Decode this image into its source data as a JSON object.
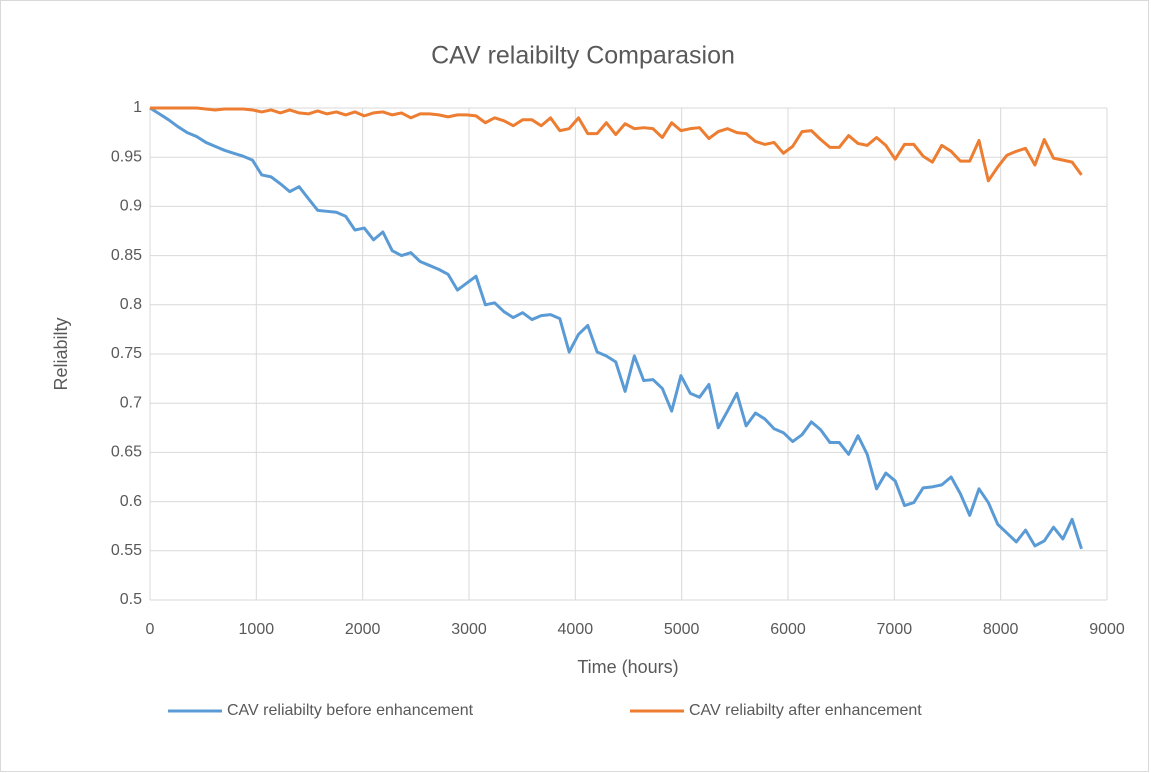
{
  "chart_data": {
    "type": "line",
    "title": "CAV relaibilty Comparasion",
    "x_label": "Time (hours)",
    "y_label": "Reliabilty",
    "x": [
      0,
      88,
      175,
      263,
      350,
      438,
      526,
      613,
      701,
      788,
      876,
      964,
      1051,
      1139,
      1226,
      1314,
      1402,
      1489,
      1577,
      1664,
      1752,
      1840,
      1927,
      2015,
      2102,
      2190,
      2278,
      2365,
      2453,
      2540,
      2628,
      2716,
      2803,
      2891,
      2978,
      3066,
      3154,
      3241,
      3329,
      3416,
      3504,
      3592,
      3679,
      3767,
      3854,
      3942,
      4030,
      4117,
      4205,
      4292,
      4380,
      4468,
      4555,
      4643,
      4730,
      4818,
      4906,
      4993,
      5081,
      5168,
      5256,
      5344,
      5431,
      5519,
      5606,
      5694,
      5782,
      5869,
      5957,
      6044,
      6132,
      6220,
      6307,
      6395,
      6482,
      6570,
      6658,
      6745,
      6833,
      6920,
      7008,
      7096,
      7183,
      7271,
      7358,
      7446,
      7534,
      7621,
      7709,
      7796,
      7884,
      7972,
      8059,
      8147,
      8234,
      8322,
      8410,
      8497,
      8585,
      8672,
      8760
    ],
    "series": [
      {
        "name": "CAV reliabilty before enhancement",
        "color": "#5b9bd5",
        "values": [
          1,
          0.994,
          0.988,
          0.981,
          0.975,
          0.971,
          0.965,
          0.961,
          0.957,
          0.954,
          0.951,
          0.947,
          0.932,
          0.93,
          0.923,
          0.915,
          0.92,
          0.908,
          0.896,
          0.895,
          0.894,
          0.89,
          0.876,
          0.878,
          0.866,
          0.874,
          0.855,
          0.85,
          0.853,
          0.844,
          0.84,
          0.836,
          0.831,
          0.815,
          0.822,
          0.829,
          0.8,
          0.802,
          0.793,
          0.787,
          0.792,
          0.785,
          0.789,
          0.79,
          0.786,
          0.752,
          0.77,
          0.779,
          0.752,
          0.748,
          0.742,
          0.712,
          0.748,
          0.723,
          0.724,
          0.715,
          0.692,
          0.728,
          0.71,
          0.706,
          0.719,
          0.675,
          0.692,
          0.71,
          0.677,
          0.69,
          0.684,
          0.674,
          0.67,
          0.661,
          0.668,
          0.681,
          0.673,
          0.66,
          0.66,
          0.648,
          0.667,
          0.648,
          0.613,
          0.629,
          0.621,
          0.596,
          0.599,
          0.614,
          0.615,
          0.617,
          0.625,
          0.608,
          0.586,
          0.613,
          0.599,
          0.577,
          0.568,
          0.559,
          0.571,
          0.555,
          0.56,
          0.574,
          0.562,
          0.582,
          0.552
        ]
      },
      {
        "name": "CAV reliabilty after enhancement",
        "color": "#ed7d31",
        "values": [
          1,
          1,
          1,
          1,
          1,
          1,
          0.999,
          0.998,
          0.999,
          0.999,
          0.999,
          0.998,
          0.996,
          0.998,
          0.995,
          0.998,
          0.995,
          0.994,
          0.997,
          0.994,
          0.996,
          0.993,
          0.996,
          0.992,
          0.995,
          0.996,
          0.993,
          0.995,
          0.99,
          0.994,
          0.994,
          0.993,
          0.991,
          0.993,
          0.993,
          0.992,
          0.985,
          0.99,
          0.987,
          0.982,
          0.988,
          0.988,
          0.982,
          0.99,
          0.977,
          0.979,
          0.99,
          0.974,
          0.974,
          0.985,
          0.973,
          0.984,
          0.979,
          0.98,
          0.979,
          0.97,
          0.985,
          0.977,
          0.979,
          0.98,
          0.969,
          0.976,
          0.979,
          0.975,
          0.974,
          0.966,
          0.963,
          0.965,
          0.954,
          0.961,
          0.976,
          0.977,
          0.968,
          0.96,
          0.96,
          0.972,
          0.964,
          0.962,
          0.97,
          0.962,
          0.948,
          0.963,
          0.963,
          0.951,
          0.945,
          0.962,
          0.956,
          0.946,
          0.946,
          0.967,
          0.926,
          0.94,
          0.952,
          0.956,
          0.959,
          0.942,
          0.968,
          0.949,
          0.947,
          0.945,
          0.932
        ]
      }
    ],
    "xlim": [
      0,
      9000
    ],
    "xticks": [
      0,
      1000,
      2000,
      3000,
      4000,
      5000,
      6000,
      7000,
      8000,
      9000
    ],
    "ylim": [
      0.5,
      1
    ],
    "yticks": [
      0.5,
      0.55,
      0.6,
      0.65,
      0.7,
      0.75,
      0.8,
      0.85,
      0.9,
      0.95,
      1
    ],
    "grid": true,
    "legend": "bottom"
  }
}
